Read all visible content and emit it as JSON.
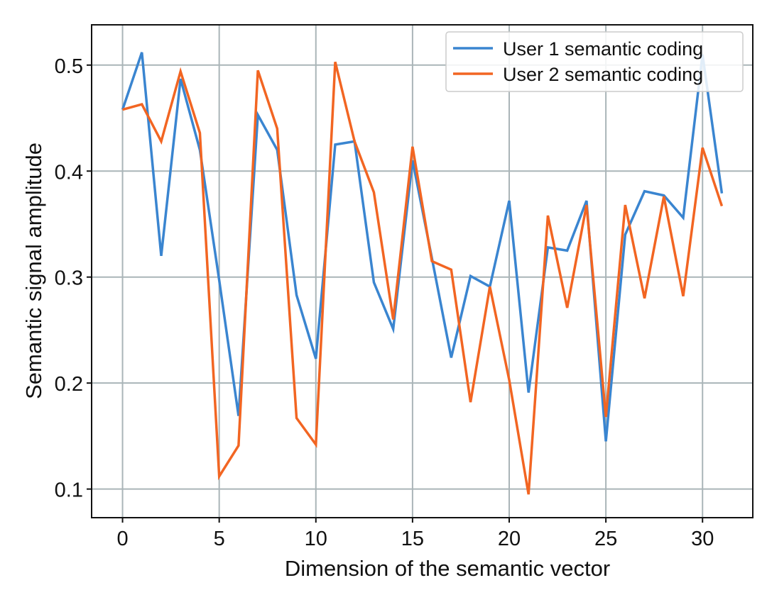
{
  "chart_data": {
    "type": "line",
    "title": "",
    "xlabel": "Dimension of the semantic vector",
    "ylabel": "Semantic signal amplitude",
    "xlim": [
      -1.6,
      32.6
    ],
    "ylim": [
      0.073,
      0.538
    ],
    "xticks": [
      0,
      5,
      10,
      15,
      20,
      25,
      30
    ],
    "xtick_labels": [
      "0",
      "5",
      "10",
      "15",
      "20",
      "25",
      "30"
    ],
    "yticks": [
      0.1,
      0.2,
      0.3,
      0.4,
      0.5
    ],
    "ytick_labels": [
      "0.1",
      "0.2",
      "0.3",
      "0.4",
      "0.5"
    ],
    "grid": true,
    "legend_position": "top-right",
    "x": [
      0,
      1,
      2,
      3,
      4,
      5,
      6,
      7,
      8,
      9,
      10,
      11,
      12,
      13,
      14,
      15,
      16,
      17,
      18,
      19,
      20,
      21,
      22,
      23,
      24,
      25,
      26,
      27,
      28,
      29,
      30,
      31
    ],
    "series": [
      {
        "name": "User 1 semantic coding",
        "color": "#3a85d0",
        "values": [
          0.458,
          0.512,
          0.32,
          0.487,
          0.42,
          0.297,
          0.169,
          0.453,
          0.42,
          0.283,
          0.223,
          0.425,
          0.428,
          0.295,
          0.251,
          0.41,
          0.318,
          0.224,
          0.301,
          0.291,
          0.372,
          0.191,
          0.328,
          0.325,
          0.372,
          0.145,
          0.34,
          0.381,
          0.377,
          0.356,
          0.51,
          0.379
        ]
      },
      {
        "name": "User 2 semantic coding",
        "color": "#f26522",
        "values": [
          0.458,
          0.463,
          0.428,
          0.494,
          0.436,
          0.112,
          0.141,
          0.495,
          0.44,
          0.167,
          0.142,
          0.503,
          0.428,
          0.38,
          0.26,
          0.423,
          0.315,
          0.307,
          0.182,
          0.291,
          0.203,
          0.095,
          0.358,
          0.271,
          0.368,
          0.168,
          0.368,
          0.28,
          0.376,
          0.282,
          0.422,
          0.367
        ]
      }
    ]
  }
}
